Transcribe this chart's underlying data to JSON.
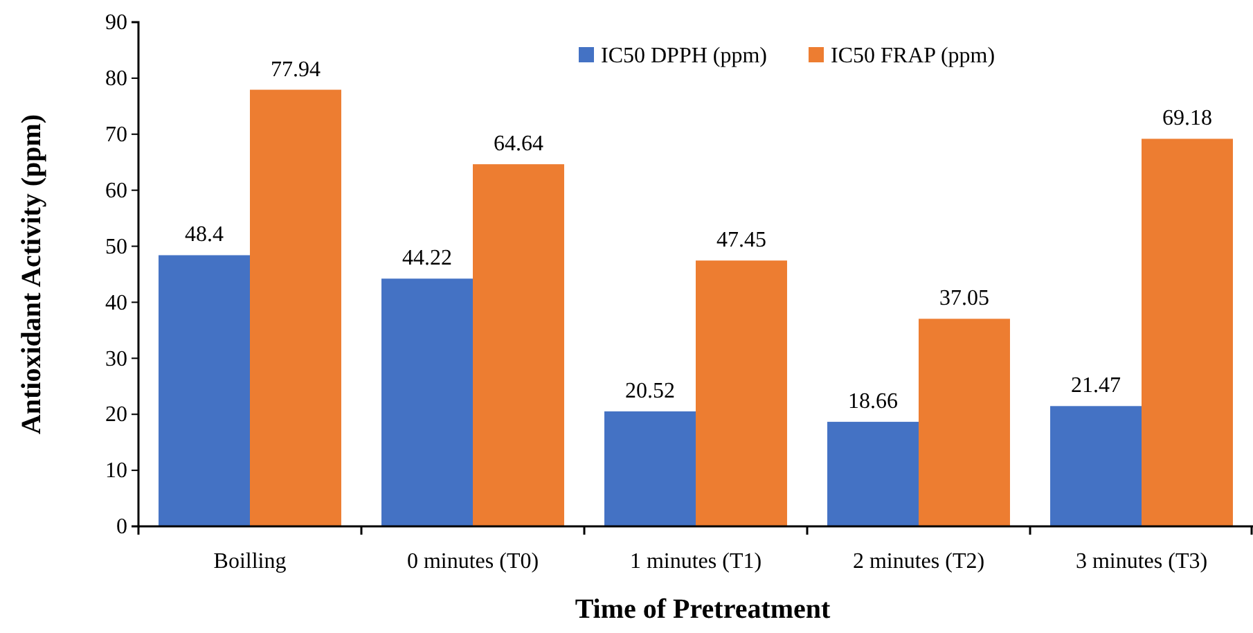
{
  "chart_data": {
    "type": "bar",
    "xlabel": "Time of Pretreatment",
    "ylabel": "Antioxidant Activity (ppm)",
    "categories": [
      "Boilling",
      "0 minutes (T0)",
      "1 minutes (T1)",
      "2 minutes (T2)",
      "3 minutes (T3)"
    ],
    "series": [
      {
        "name": "IC50 DPPH (ppm)",
        "color": "#4472c4",
        "values": [
          48.4,
          44.22,
          20.52,
          18.66,
          21.47
        ]
      },
      {
        "name": "IC50 FRAP (ppm)",
        "color": "#ed7d31",
        "values": [
          77.94,
          64.64,
          47.45,
          37.05,
          69.18
        ]
      }
    ],
    "ylim": [
      0,
      90
    ],
    "yticks": [
      0,
      10,
      20,
      30,
      40,
      50,
      60,
      70,
      80,
      90
    ],
    "data_labels": true,
    "legend": "top right"
  }
}
